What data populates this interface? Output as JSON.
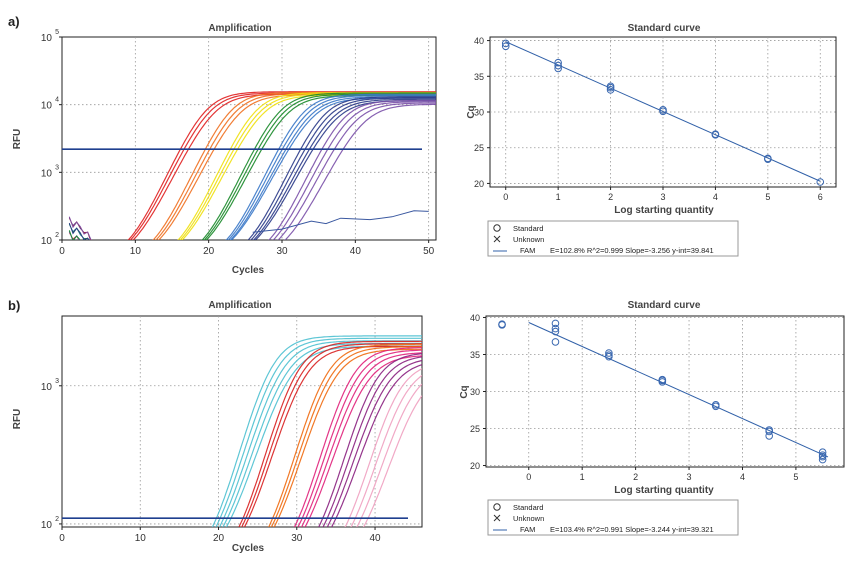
{
  "panels": [
    {
      "label": "a)",
      "amplification": {
        "type": "line",
        "title": "Amplification",
        "xlabel": "Cycles",
        "ylabel": "RFU",
        "xlim": [
          0,
          51
        ],
        "y_scale": "log",
        "ylim": [
          100,
          100000
        ],
        "x_ticks": [
          0,
          10,
          20,
          30,
          40,
          50
        ],
        "y_ticks": [
          {
            "v": 100,
            "base": "10",
            "exp": "2"
          },
          {
            "v": 1000,
            "base": "10",
            "exp": "3"
          },
          {
            "v": 10000,
            "base": "10",
            "exp": "4"
          },
          {
            "v": 100000,
            "base": "10",
            "exp": "5"
          }
        ],
        "grid": true,
        "threshold": 2200,
        "threshold_color": "#1f3f8f",
        "plateau_range": [
          10000,
          16000
        ],
        "curve_groups": [
          {
            "color": "#e02020",
            "cq": [
              16.2,
              16.7,
              17.3
            ],
            "plateau": 15500
          },
          {
            "color": "#f07020",
            "cq": [
              19.6,
              20.2,
              20.8
            ],
            "plateau": 15200
          },
          {
            "color": "#f0e010",
            "cq": [
              23.0,
              23.5,
              24.0
            ],
            "plateau": 15000
          },
          {
            "color": "#1a8a2a",
            "cq": [
              26.3,
              26.8,
              27.3
            ],
            "plateau": 14800
          },
          {
            "color": "#3a78c8",
            "cq": [
              29.6,
              30.1,
              30.6,
              31.0
            ],
            "plateau": 14200
          },
          {
            "color": "#2a3a88",
            "cq": [
              32.6,
              33.2,
              33.8,
              34.3
            ],
            "plateau": 13000
          },
          {
            "color": "#7a50a8",
            "cq": [
              35.5,
              36.3,
              37.2,
              38.4
            ],
            "plateau": 11500
          }
        ],
        "background_line": [
          [
            26,
            130
          ],
          [
            30,
            145
          ],
          [
            34,
            190
          ],
          [
            36,
            175
          ],
          [
            38,
            210
          ],
          [
            42,
            200
          ],
          [
            45,
            220
          ],
          [
            48,
            270
          ],
          [
            50,
            265
          ]
        ]
      },
      "standard_curve": {
        "type": "scatter",
        "title": "Standard curve",
        "xlabel": "Log starting quantity",
        "ylabel": "Cq",
        "xlim": [
          -0.3,
          6.3
        ],
        "ylim": [
          19.5,
          40.5
        ],
        "x_ticks": [
          0,
          1,
          2,
          3,
          4,
          5,
          6
        ],
        "y_ticks": [
          20,
          25,
          30,
          35,
          40
        ],
        "grid": true,
        "points": [
          [
            0,
            39.2
          ],
          [
            0,
            39.6
          ],
          [
            1,
            36.1
          ],
          [
            1,
            36.5
          ],
          [
            1,
            36.9
          ],
          [
            2,
            33.1
          ],
          [
            2,
            33.4
          ],
          [
            2,
            33.6
          ],
          [
            3,
            30.1
          ],
          [
            3,
            30.3
          ],
          [
            4,
            26.8
          ],
          [
            4,
            26.9
          ],
          [
            5,
            23.4
          ],
          [
            5,
            23.5
          ],
          [
            6,
            20.2
          ]
        ],
        "fit": {
          "slope": -3.256,
          "intercept": 39.841,
          "x_range": [
            0,
            6
          ]
        },
        "legend": {
          "standard": "Standard",
          "unknown": "Unknown",
          "series": "FAM",
          "stats": "E=102.8% R^2=0.999 Slope=-3.256 y-int=39.841"
        }
      }
    },
    {
      "label": "b)",
      "amplification": {
        "type": "line",
        "title": "Amplification",
        "xlabel": "Cycles",
        "ylabel": "RFU",
        "xlim": [
          0,
          46
        ],
        "y_scale": "log",
        "ylim": [
          95,
          3200
        ],
        "x_ticks": [
          0,
          10,
          20,
          30,
          40
        ],
        "y_ticks": [
          {
            "v": 100,
            "base": "10",
            "exp": "2"
          },
          {
            "v": 1000,
            "base": "10",
            "exp": "3"
          }
        ],
        "grid": true,
        "threshold": 110,
        "threshold_color": "#1f3f8f",
        "curve_groups": [
          {
            "color": "#4cc0d0",
            "cq": [
              20.8,
              21.3,
              21.8,
              22.3,
              22.8
            ],
            "plateau": 2250
          },
          {
            "color": "#d82020",
            "cq": [
              24.2,
              24.6,
              25.0
            ],
            "plateau": 2050
          },
          {
            "color": "#f06a10",
            "cq": [
              28.0,
              28.4,
              28.8
            ],
            "plateau": 1950
          },
          {
            "color": "#e0207a",
            "cq": [
              31.3,
              31.8,
              32.3,
              32.8
            ],
            "plateau": 1850
          },
          {
            "color": "#8a2080",
            "cq": [
              34.4,
              35.0,
              35.6,
              36.2
            ],
            "plateau": 1700
          },
          {
            "color": "#f0a0c0",
            "cq": [
              37.8,
              38.6,
              39.4,
              40.3
            ],
            "plateau": 1450
          }
        ]
      },
      "standard_curve": {
        "type": "scatter",
        "title": "Standard curve",
        "xlabel": "Log starting quantity",
        "ylabel": "Cq",
        "xlim": [
          -0.8,
          5.9
        ],
        "ylim": [
          19.8,
          40.2
        ],
        "x_ticks": [
          0,
          1,
          2,
          3,
          4,
          5
        ],
        "y_ticks": [
          20,
          25,
          30,
          35,
          40
        ],
        "grid": true,
        "points": [
          [
            -0.5,
            39.0
          ],
          [
            -0.5,
            39.1
          ],
          [
            0.5,
            39.2
          ],
          [
            0.5,
            38.1
          ],
          [
            0.5,
            36.7
          ],
          [
            0.5,
            38.5
          ],
          [
            1.5,
            35.2
          ],
          [
            1.5,
            34.7
          ],
          [
            1.5,
            34.9
          ],
          [
            2.5,
            31.6
          ],
          [
            2.5,
            31.3
          ],
          [
            2.5,
            31.5
          ],
          [
            3.5,
            28.2
          ],
          [
            3.5,
            28.0
          ],
          [
            4.5,
            24.8
          ],
          [
            4.5,
            24.6
          ],
          [
            4.5,
            24.0
          ],
          [
            5.5,
            21.8
          ],
          [
            5.5,
            21.4
          ],
          [
            5.5,
            21.2
          ],
          [
            5.5,
            20.8
          ]
        ],
        "fit": {
          "slope": -3.244,
          "intercept": 39.321,
          "x_range": [
            0,
            5.6
          ]
        },
        "legend": {
          "standard": "Standard",
          "unknown": "Unknown",
          "series": "FAM",
          "stats": "E=103.4% R^2=0.991 Slope=-3.244 y-int=39.321"
        }
      }
    }
  ]
}
